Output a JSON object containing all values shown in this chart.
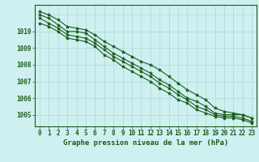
{
  "title": "Graphe pression niveau de la mer (hPa)",
  "background_color": "#cff0f0",
  "grid_color": "#aad8d8",
  "line_color": "#1a5c1a",
  "x_values": [
    0,
    1,
    2,
    3,
    4,
    5,
    6,
    7,
    8,
    9,
    10,
    11,
    12,
    13,
    14,
    15,
    16,
    17,
    18,
    19,
    20,
    21,
    22,
    23
  ],
  "series": [
    [
      1011.2,
      1011.0,
      1010.7,
      1010.3,
      1010.2,
      1010.1,
      1009.8,
      1009.4,
      1009.1,
      1008.8,
      1008.5,
      1008.2,
      1008.0,
      1007.7,
      1007.3,
      1006.9,
      1006.5,
      1006.2,
      1005.9,
      1005.4,
      1005.2,
      1005.1,
      1005.0,
      1004.8
    ],
    [
      1011.0,
      1010.8,
      1010.4,
      1010.0,
      1010.0,
      1009.9,
      1009.5,
      1009.1,
      1008.7,
      1008.4,
      1008.1,
      1007.8,
      1007.5,
      1007.1,
      1006.8,
      1006.4,
      1006.0,
      1005.8,
      1005.5,
      1005.1,
      1005.0,
      1005.0,
      1005.0,
      1004.8
    ],
    [
      1010.8,
      1010.5,
      1010.2,
      1009.8,
      1009.7,
      1009.6,
      1009.3,
      1008.9,
      1008.5,
      1008.2,
      1007.9,
      1007.6,
      1007.3,
      1006.9,
      1006.6,
      1006.2,
      1005.9,
      1005.5,
      1005.3,
      1005.0,
      1004.9,
      1004.9,
      1004.8,
      1004.6
    ],
    [
      1010.5,
      1010.3,
      1010.0,
      1009.6,
      1009.5,
      1009.4,
      1009.1,
      1008.6,
      1008.3,
      1007.9,
      1007.6,
      1007.3,
      1007.0,
      1006.6,
      1006.3,
      1005.9,
      1005.7,
      1005.3,
      1005.1,
      1004.9,
      1004.8,
      1004.8,
      1004.7,
      1004.5
    ]
  ],
  "ylim": [
    1004.3,
    1011.6
  ],
  "yticks": [
    1005,
    1006,
    1007,
    1008,
    1009,
    1010
  ],
  "tick_fontsize": 5.5,
  "title_fontsize": 6.5,
  "marker": "*",
  "marker_size": 3.0,
  "line_width": 0.8
}
